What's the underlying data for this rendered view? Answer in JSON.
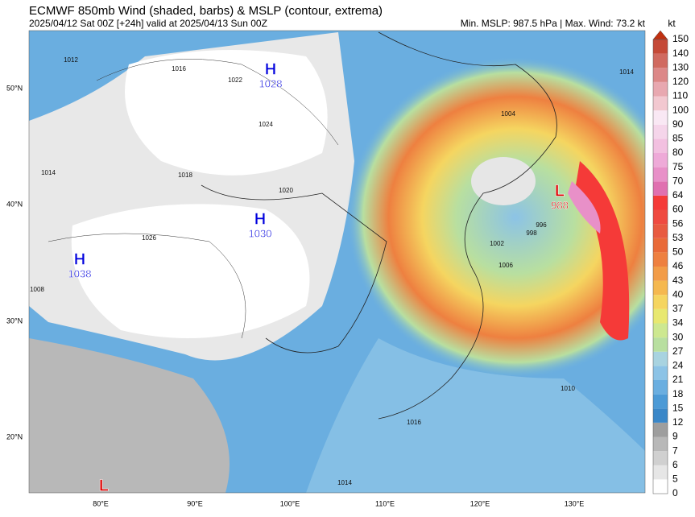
{
  "header": {
    "title": "ECMWF 850mb Wind (shaded, barbs) & MSLP (contour, extrema)",
    "subtitle": "2025/04/12 Sat 00Z [+24h] valid at 2025/04/13 Sun 00Z",
    "stats": "Min. MSLP: 987.5 hPa | Max. Wind: 73.2 kt"
  },
  "colorbar": {
    "unit": "kt",
    "ticks": [
      0,
      5,
      6,
      7,
      9,
      12,
      15,
      18,
      21,
      24,
      27,
      30,
      34,
      37,
      40,
      43,
      46,
      50,
      53,
      56,
      60,
      64,
      70,
      75,
      80,
      85,
      90,
      100,
      110,
      120,
      130,
      140,
      150
    ],
    "colors": [
      "#ffffff",
      "#e6e6e6",
      "#d0d0d0",
      "#b8b8b8",
      "#9e9e9e",
      "#3a87c8",
      "#4c9ad6",
      "#6aaee0",
      "#8cc3e6",
      "#a8d3e0",
      "#b8dfa0",
      "#cde890",
      "#e8e870",
      "#f5d560",
      "#f5b850",
      "#f29c48",
      "#ee8040",
      "#e96a38",
      "#e85a40",
      "#ef4a40",
      "#f53a38",
      "#e070b0",
      "#e890c8",
      "#eeaad8",
      "#f2c0e0",
      "#f5d5ea",
      "#f9e8f4",
      "#f2c8d0",
      "#e8a8b0",
      "#dc8888",
      "#d06a60",
      "#c54a38"
    ],
    "extend_color": "#c03010"
  },
  "axes": {
    "lat": [
      "50°N",
      "40°N",
      "30°N",
      "20°N"
    ],
    "lon": [
      "80°E",
      "90°E",
      "100°E",
      "110°E",
      "120°E",
      "130°E"
    ]
  },
  "centers": [
    {
      "letter": "H",
      "value": "1028"
    },
    {
      "letter": "H",
      "value": "1030"
    },
    {
      "letter": "H",
      "value": "1038"
    },
    {
      "letter": "L",
      "value": "988"
    },
    {
      "letter": "L"
    }
  ],
  "contour_labels": [
    "1012",
    "1016",
    "1022",
    "1024",
    "1020",
    "1018",
    "1026",
    "1014",
    "1008",
    "996",
    "998",
    "1002",
    "1006",
    "1004",
    "1010",
    "1016",
    "1014",
    "1014"
  ]
}
